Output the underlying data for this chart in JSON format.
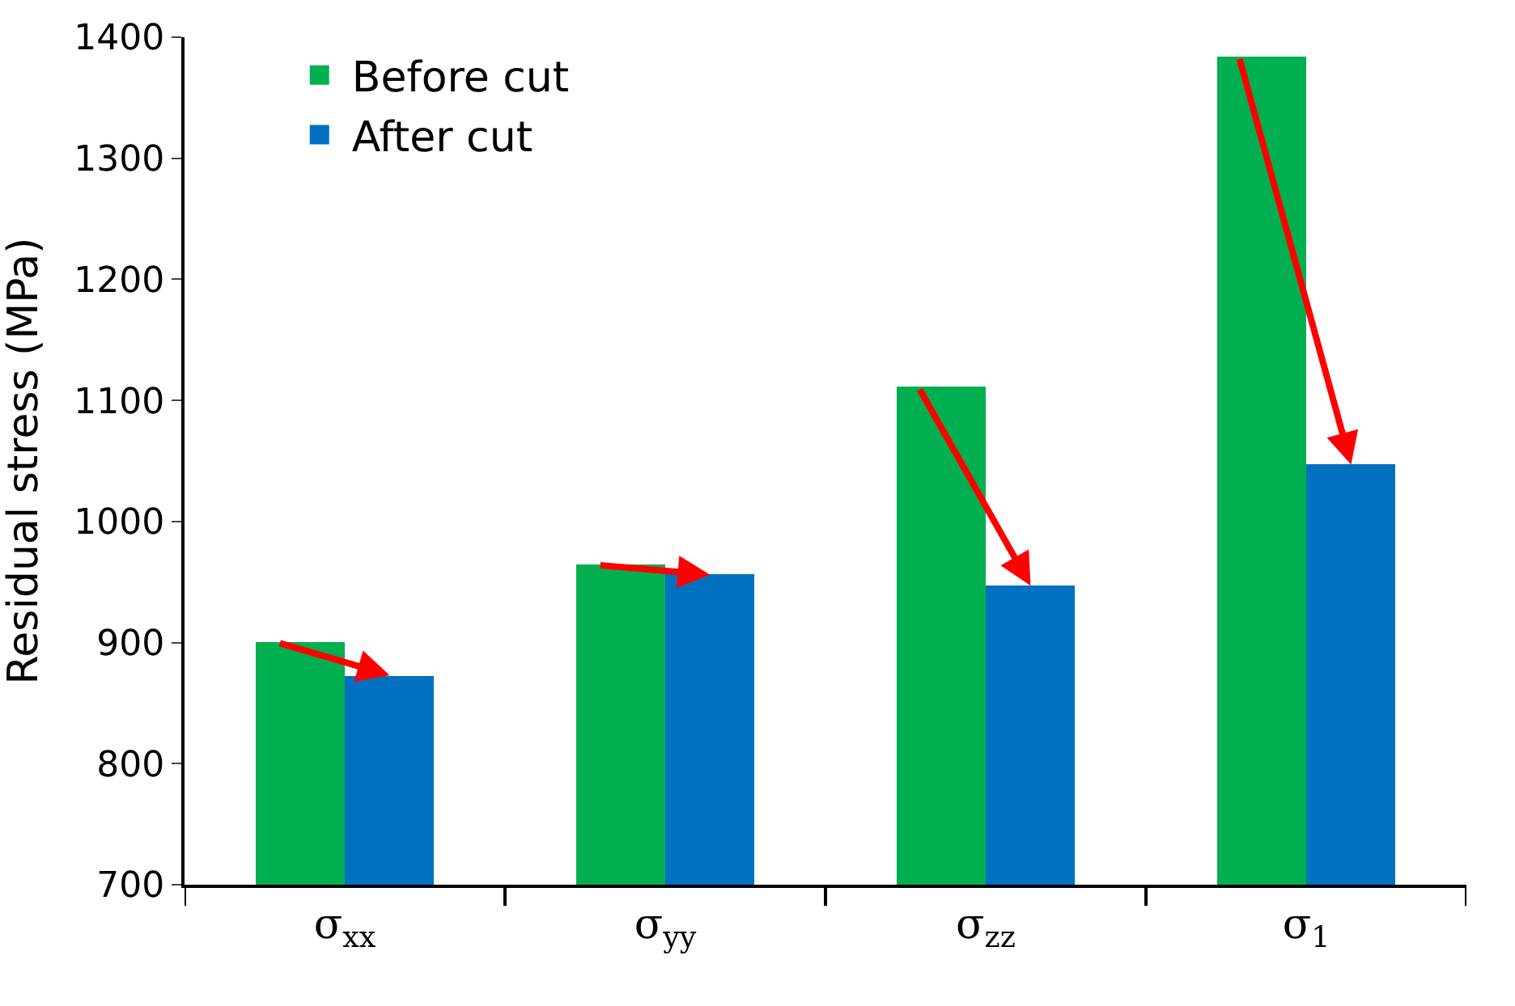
{
  "chart_data": {
    "type": "bar",
    "ylabel": "Residual stress (MPa)",
    "categories": [
      "σ$_{xx}$",
      "σ$_{yy}$",
      "σ$_{zz}$",
      "σ$_{1}$"
    ],
    "series": [
      {
        "name": "Before cut",
        "color": "#00b050",
        "values": [
          900,
          964,
          1111,
          1384
        ]
      },
      {
        "name": "After cut",
        "color": "#0070c0",
        "values": [
          873,
          956,
          947,
          1047
        ]
      }
    ],
    "ylim": [
      700,
      1400
    ],
    "yticks": [
      700,
      800,
      900,
      1000,
      1100,
      1200,
      1300,
      1400
    ],
    "grid": false,
    "legend": "top left"
  }
}
